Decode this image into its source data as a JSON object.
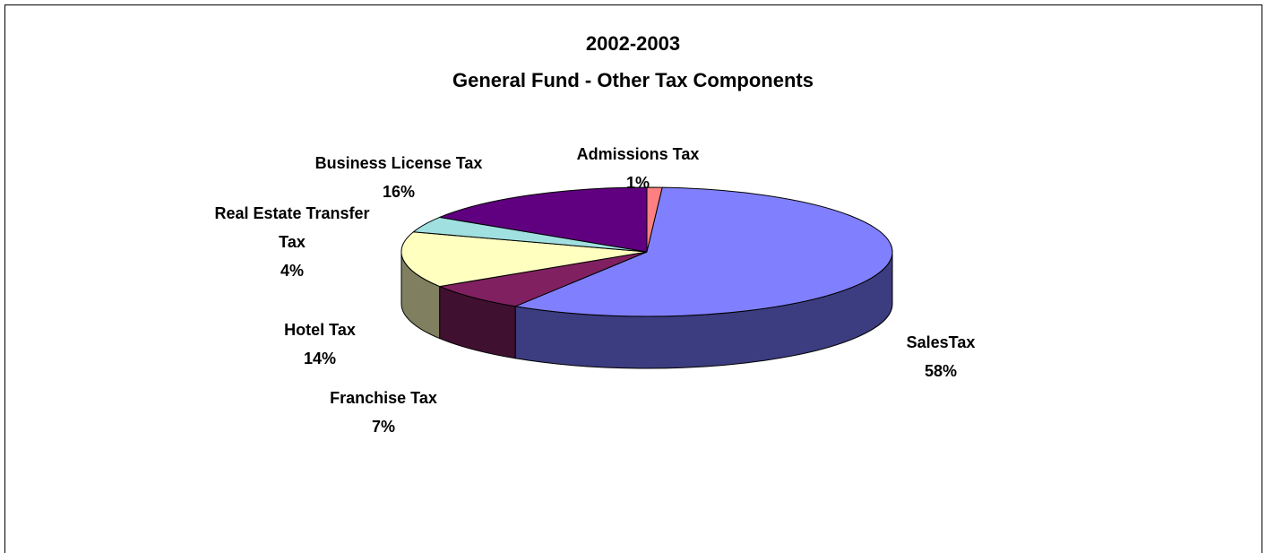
{
  "chart_data": {
    "type": "pie",
    "title": "2002-2003",
    "subtitle": "General Fund - Other Tax Components",
    "slices": [
      {
        "label": "Admissions Tax",
        "label_lines": [
          "Admissions Tax"
        ],
        "percent_label": "1%",
        "value": 1,
        "color": "#ff8080",
        "side_color": "#c06060"
      },
      {
        "label": "SalesTax",
        "label_lines": [
          "SalesTax"
        ],
        "percent_label": "58%",
        "value": 58,
        "color": "#8080ff",
        "side_color": "#3c3c80"
      },
      {
        "label": "Franchise Tax",
        "label_lines": [
          "Franchise Tax"
        ],
        "percent_label": "7%",
        "value": 7,
        "color": "#802060",
        "side_color": "#401030"
      },
      {
        "label": "Hotel Tax",
        "label_lines": [
          "Hotel Tax"
        ],
        "percent_label": "14%",
        "value": 14,
        "color": "#ffffc0",
        "side_color": "#808060"
      },
      {
        "label": "Real Estate Transfer Tax",
        "label_lines": [
          "Real Estate Transfer",
          "Tax"
        ],
        "percent_label": "4%",
        "value": 4,
        "color": "#a0e0e0",
        "side_color": "#507070"
      },
      {
        "label": "Business License Tax",
        "label_lines": [
          "Business License Tax"
        ],
        "percent_label": "16%",
        "value": 16,
        "color": "#600080",
        "side_color": "#300040"
      }
    ]
  }
}
